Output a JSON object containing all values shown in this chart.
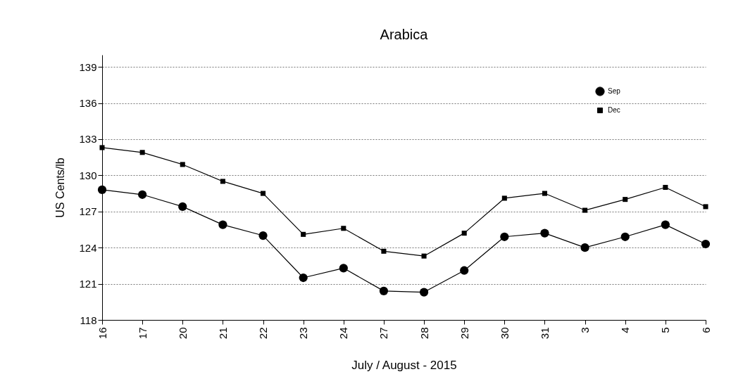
{
  "chart_data": {
    "type": "line",
    "title": "Arabica",
    "xlabel": "July  / August - 2015",
    "ylabel": "US Cents/lb",
    "categories": [
      "16",
      "17",
      "20",
      "21",
      "22",
      "23",
      "24",
      "27",
      "28",
      "29",
      "30",
      "31",
      "3",
      "4",
      "5",
      "6"
    ],
    "series": [
      {
        "name": "Sep",
        "color": "#000000",
        "marker": "circle",
        "values": [
          128.8,
          128.4,
          127.4,
          125.9,
          125.0,
          121.5,
          122.3,
          120.4,
          120.3,
          122.1,
          124.9,
          125.2,
          124.0,
          124.9,
          125.9,
          124.3
        ]
      },
      {
        "name": "Dec",
        "color": "#000000",
        "marker": "square",
        "values": [
          132.3,
          131.9,
          130.9,
          129.5,
          128.5,
          125.1,
          125.6,
          123.7,
          123.3,
          125.2,
          128.1,
          128.5,
          127.1,
          128.0,
          129.0,
          127.4
        ]
      }
    ],
    "ylim": [
      118,
      140
    ],
    "yticks": [
      118,
      121,
      124,
      127,
      130,
      133,
      136,
      139
    ],
    "grid": "y",
    "legend": "top right",
    "line_style": "solid"
  }
}
